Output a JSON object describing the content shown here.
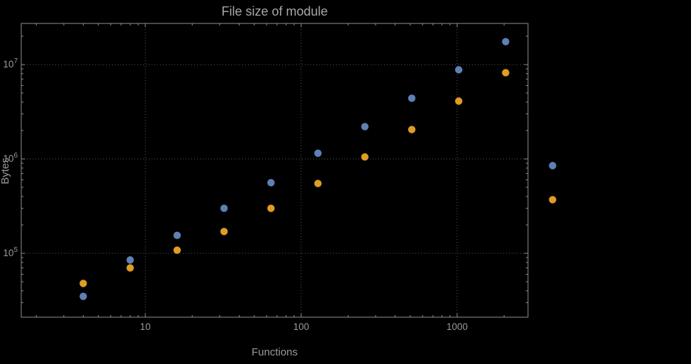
{
  "colors": {
    "background": "#000000",
    "frame": "#8f8f8f",
    "grid": "#5a5a5a",
    "text": "#9a9a9a",
    "series_blue": "#5E81B5",
    "series_orange": "#E19C24"
  },
  "chart_data": {
    "type": "scatter",
    "title": "File size of module",
    "xlabel": "Functions",
    "ylabel": "Bytes",
    "x_scale": "log",
    "y_scale": "log",
    "grid": true,
    "legend": "none",
    "x_ticks": [
      10,
      100,
      1000
    ],
    "x_tick_labels": [
      "10",
      "100",
      "1000"
    ],
    "y_ticks": [
      100000,
      1000000,
      10000000
    ],
    "y_tick_labels": [
      "10^5",
      "10^6",
      "10^7"
    ],
    "xlim": [
      1.7,
      2900
    ],
    "ylim": [
      21000,
      27000000
    ],
    "x": [
      4,
      8,
      16,
      32,
      64,
      128,
      256,
      512,
      1024,
      2048,
      4096
    ],
    "series": [
      {
        "name": "blue",
        "color": "#5E81B5",
        "values": [
          35000,
          85000,
          155000,
          300000,
          560000,
          1150000,
          2200000,
          4400000,
          8800000,
          17500000,
          850000
        ]
      },
      {
        "name": "orange",
        "color": "#E19C24",
        "values": [
          48000,
          70000,
          108000,
          170000,
          300000,
          550000,
          1050000,
          2050000,
          4100000,
          8200000,
          370000
        ]
      }
    ]
  }
}
